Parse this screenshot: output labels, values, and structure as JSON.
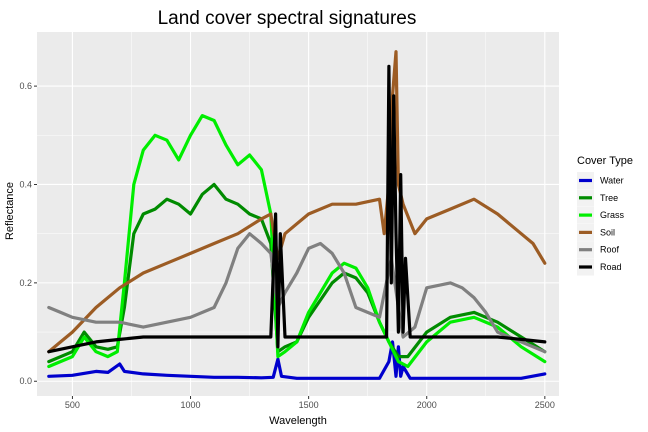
{
  "chart_data": {
    "type": "line",
    "title": "Land cover spectral signatures",
    "xlabel": "Wavelength",
    "ylabel": "Reflectance",
    "xlim": [
      350,
      2560
    ],
    "ylim": [
      -0.03,
      0.71
    ],
    "x_ticks": [
      500,
      1000,
      1500,
      2000,
      2500
    ],
    "y_ticks": [
      0.0,
      0.2,
      0.4,
      0.6
    ],
    "x_tick_labels": [
      "500",
      "1000",
      "1500",
      "2000",
      "2500"
    ],
    "y_tick_labels": [
      "0.0",
      "0.2",
      "0.4",
      "0.6"
    ],
    "grid": true,
    "legend_position": "right",
    "legend_title": "Cover Type",
    "series": [
      {
        "name": "Water",
        "color": "#0000cd",
        "points": [
          [
            400,
            0.01
          ],
          [
            500,
            0.012
          ],
          [
            600,
            0.02
          ],
          [
            650,
            0.018
          ],
          [
            700,
            0.035
          ],
          [
            720,
            0.02
          ],
          [
            800,
            0.015
          ],
          [
            900,
            0.012
          ],
          [
            1000,
            0.01
          ],
          [
            1100,
            0.008
          ],
          [
            1200,
            0.008
          ],
          [
            1300,
            0.007
          ],
          [
            1350,
            0.008
          ],
          [
            1370,
            0.045
          ],
          [
            1385,
            0.01
          ],
          [
            1450,
            0.006
          ],
          [
            1600,
            0.006
          ],
          [
            1800,
            0.006
          ],
          [
            1840,
            0.04
          ],
          [
            1855,
            0.08
          ],
          [
            1870,
            0.01
          ],
          [
            1880,
            0.07
          ],
          [
            1890,
            0.01
          ],
          [
            1900,
            0.03
          ],
          [
            1930,
            0.006
          ],
          [
            2000,
            0.006
          ],
          [
            2200,
            0.006
          ],
          [
            2400,
            0.006
          ],
          [
            2500,
            0.015
          ]
        ]
      },
      {
        "name": "Tree",
        "color": "#008b00",
        "points": [
          [
            400,
            0.04
          ],
          [
            500,
            0.06
          ],
          [
            550,
            0.1
          ],
          [
            600,
            0.07
          ],
          [
            650,
            0.065
          ],
          [
            690,
            0.07
          ],
          [
            720,
            0.15
          ],
          [
            760,
            0.3
          ],
          [
            800,
            0.34
          ],
          [
            850,
            0.35
          ],
          [
            900,
            0.37
          ],
          [
            950,
            0.36
          ],
          [
            1000,
            0.34
          ],
          [
            1050,
            0.38
          ],
          [
            1100,
            0.4
          ],
          [
            1150,
            0.37
          ],
          [
            1200,
            0.36
          ],
          [
            1250,
            0.34
          ],
          [
            1300,
            0.33
          ],
          [
            1340,
            0.28
          ],
          [
            1370,
            0.06
          ],
          [
            1400,
            0.07
          ],
          [
            1450,
            0.08
          ],
          [
            1500,
            0.13
          ],
          [
            1600,
            0.2
          ],
          [
            1650,
            0.22
          ],
          [
            1700,
            0.21
          ],
          [
            1750,
            0.18
          ],
          [
            1800,
            0.12
          ],
          [
            1840,
            0.08
          ],
          [
            1880,
            0.05
          ],
          [
            1920,
            0.05
          ],
          [
            2000,
            0.1
          ],
          [
            2100,
            0.13
          ],
          [
            2200,
            0.14
          ],
          [
            2300,
            0.12
          ],
          [
            2400,
            0.09
          ],
          [
            2500,
            0.06
          ]
        ]
      },
      {
        "name": "Grass",
        "color": "#00ee00",
        "points": [
          [
            400,
            0.03
          ],
          [
            500,
            0.05
          ],
          [
            550,
            0.09
          ],
          [
            600,
            0.06
          ],
          [
            650,
            0.05
          ],
          [
            690,
            0.06
          ],
          [
            720,
            0.2
          ],
          [
            760,
            0.4
          ],
          [
            800,
            0.47
          ],
          [
            850,
            0.5
          ],
          [
            900,
            0.49
          ],
          [
            950,
            0.45
          ],
          [
            1000,
            0.5
          ],
          [
            1050,
            0.54
          ],
          [
            1100,
            0.53
          ],
          [
            1150,
            0.48
          ],
          [
            1200,
            0.44
          ],
          [
            1250,
            0.46
          ],
          [
            1300,
            0.43
          ],
          [
            1340,
            0.34
          ],
          [
            1370,
            0.05
          ],
          [
            1400,
            0.06
          ],
          [
            1450,
            0.08
          ],
          [
            1500,
            0.14
          ],
          [
            1600,
            0.22
          ],
          [
            1650,
            0.24
          ],
          [
            1700,
            0.23
          ],
          [
            1750,
            0.19
          ],
          [
            1800,
            0.12
          ],
          [
            1840,
            0.08
          ],
          [
            1880,
            0.04
          ],
          [
            1920,
            0.03
          ],
          [
            2000,
            0.08
          ],
          [
            2100,
            0.12
          ],
          [
            2200,
            0.13
          ],
          [
            2300,
            0.11
          ],
          [
            2400,
            0.07
          ],
          [
            2500,
            0.04
          ]
        ]
      },
      {
        "name": "Soil",
        "color": "#9c5c24",
        "points": [
          [
            400,
            0.06
          ],
          [
            450,
            0.08
          ],
          [
            500,
            0.1
          ],
          [
            600,
            0.15
          ],
          [
            700,
            0.19
          ],
          [
            800,
            0.22
          ],
          [
            900,
            0.24
          ],
          [
            1000,
            0.26
          ],
          [
            1100,
            0.28
          ],
          [
            1200,
            0.3
          ],
          [
            1300,
            0.33
          ],
          [
            1340,
            0.34
          ],
          [
            1370,
            0.25
          ],
          [
            1400,
            0.3
          ],
          [
            1450,
            0.32
          ],
          [
            1500,
            0.34
          ],
          [
            1600,
            0.36
          ],
          [
            1700,
            0.36
          ],
          [
            1800,
            0.37
          ],
          [
            1820,
            0.3
          ],
          [
            1840,
            0.4
          ],
          [
            1855,
            0.58
          ],
          [
            1870,
            0.67
          ],
          [
            1880,
            0.4
          ],
          [
            1900,
            0.36
          ],
          [
            1950,
            0.3
          ],
          [
            2000,
            0.33
          ],
          [
            2100,
            0.35
          ],
          [
            2200,
            0.37
          ],
          [
            2300,
            0.34
          ],
          [
            2400,
            0.3
          ],
          [
            2450,
            0.28
          ],
          [
            2500,
            0.24
          ]
        ]
      },
      {
        "name": "Roof",
        "color": "#808080",
        "points": [
          [
            400,
            0.15
          ],
          [
            450,
            0.14
          ],
          [
            500,
            0.13
          ],
          [
            600,
            0.12
          ],
          [
            700,
            0.12
          ],
          [
            800,
            0.11
          ],
          [
            900,
            0.12
          ],
          [
            1000,
            0.13
          ],
          [
            1100,
            0.15
          ],
          [
            1150,
            0.2
          ],
          [
            1200,
            0.27
          ],
          [
            1250,
            0.3
          ],
          [
            1300,
            0.28
          ],
          [
            1340,
            0.26
          ],
          [
            1370,
            0.15
          ],
          [
            1400,
            0.18
          ],
          [
            1450,
            0.22
          ],
          [
            1500,
            0.27
          ],
          [
            1550,
            0.28
          ],
          [
            1600,
            0.26
          ],
          [
            1650,
            0.22
          ],
          [
            1700,
            0.15
          ],
          [
            1750,
            0.14
          ],
          [
            1800,
            0.13
          ],
          [
            1850,
            0.25
          ],
          [
            1880,
            0.15
          ],
          [
            1900,
            0.09
          ],
          [
            1950,
            0.11
          ],
          [
            2000,
            0.19
          ],
          [
            2100,
            0.2
          ],
          [
            2150,
            0.19
          ],
          [
            2200,
            0.17
          ],
          [
            2250,
            0.14
          ],
          [
            2300,
            0.1
          ],
          [
            2400,
            0.08
          ],
          [
            2500,
            0.06
          ]
        ]
      },
      {
        "name": "Road",
        "color": "#000000",
        "points": [
          [
            400,
            0.06
          ],
          [
            500,
            0.07
          ],
          [
            600,
            0.08
          ],
          [
            700,
            0.085
          ],
          [
            800,
            0.09
          ],
          [
            900,
            0.09
          ],
          [
            1000,
            0.09
          ],
          [
            1100,
            0.09
          ],
          [
            1200,
            0.09
          ],
          [
            1300,
            0.09
          ],
          [
            1340,
            0.09
          ],
          [
            1360,
            0.34
          ],
          [
            1370,
            0.07
          ],
          [
            1380,
            0.3
          ],
          [
            1400,
            0.09
          ],
          [
            1500,
            0.09
          ],
          [
            1600,
            0.09
          ],
          [
            1700,
            0.09
          ],
          [
            1800,
            0.09
          ],
          [
            1830,
            0.09
          ],
          [
            1840,
            0.64
          ],
          [
            1850,
            0.2
          ],
          [
            1860,
            0.58
          ],
          [
            1870,
            0.3
          ],
          [
            1880,
            0.1
          ],
          [
            1890,
            0.42
          ],
          [
            1900,
            0.1
          ],
          [
            1910,
            0.25
          ],
          [
            1930,
            0.09
          ],
          [
            2000,
            0.09
          ],
          [
            2100,
            0.09
          ],
          [
            2200,
            0.09
          ],
          [
            2300,
            0.09
          ],
          [
            2400,
            0.085
          ],
          [
            2500,
            0.08
          ]
        ]
      }
    ]
  }
}
